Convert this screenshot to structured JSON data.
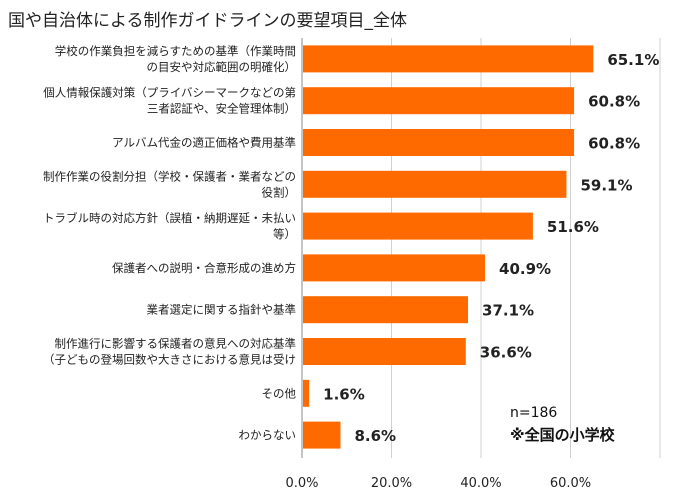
{
  "chart_data": {
    "type": "bar",
    "orientation": "horizontal",
    "title": "国や自治体による制作ガイドラインの要望項目_全体",
    "categories": [
      [
        "学校の作業負担を減らすための基準（作業時間",
        "の目安や対応範囲の明確化）"
      ],
      [
        "個人情報保護対策（プライバシーマークなどの第",
        "三者認証や、安全管理体制）"
      ],
      [
        "アルバム代金の適正価格や費用基準"
      ],
      [
        "制作作業の役割分担（学校・保護者・業者などの",
        "役割）"
      ],
      [
        "トラブル時の対応方針（誤植・納期遅延・未払い",
        "等）"
      ],
      [
        "保護者への説明・合意形成の進め方"
      ],
      [
        "業者選定に関する指針や基準"
      ],
      [
        "制作進行に影響する保護者の意見への対応基準",
        "（子どもの登場回数や大きさにおける意見は受け"
      ],
      [
        "その他"
      ],
      [
        "わからない"
      ]
    ],
    "values": [
      65.1,
      60.8,
      60.8,
      59.1,
      51.6,
      40.9,
      37.1,
      36.6,
      1.6,
      8.6
    ],
    "value_labels": [
      "65.1%",
      "60.8%",
      "60.8%",
      "59.1%",
      "51.6%",
      "40.9%",
      "37.1%",
      "36.6%",
      "1.6%",
      "8.6%"
    ],
    "xlim": [
      0,
      80
    ],
    "x_ticks": [
      0,
      20,
      40,
      60
    ],
    "x_tick_labels": [
      "0.0%",
      "20.0%",
      "40.0%",
      "60.0%"
    ],
    "grid": true,
    "bar_color": "#ff6a00",
    "grid_color": "#d0d0d0",
    "annotations": {
      "n": "n=186",
      "note": "※全国の小学校"
    }
  }
}
